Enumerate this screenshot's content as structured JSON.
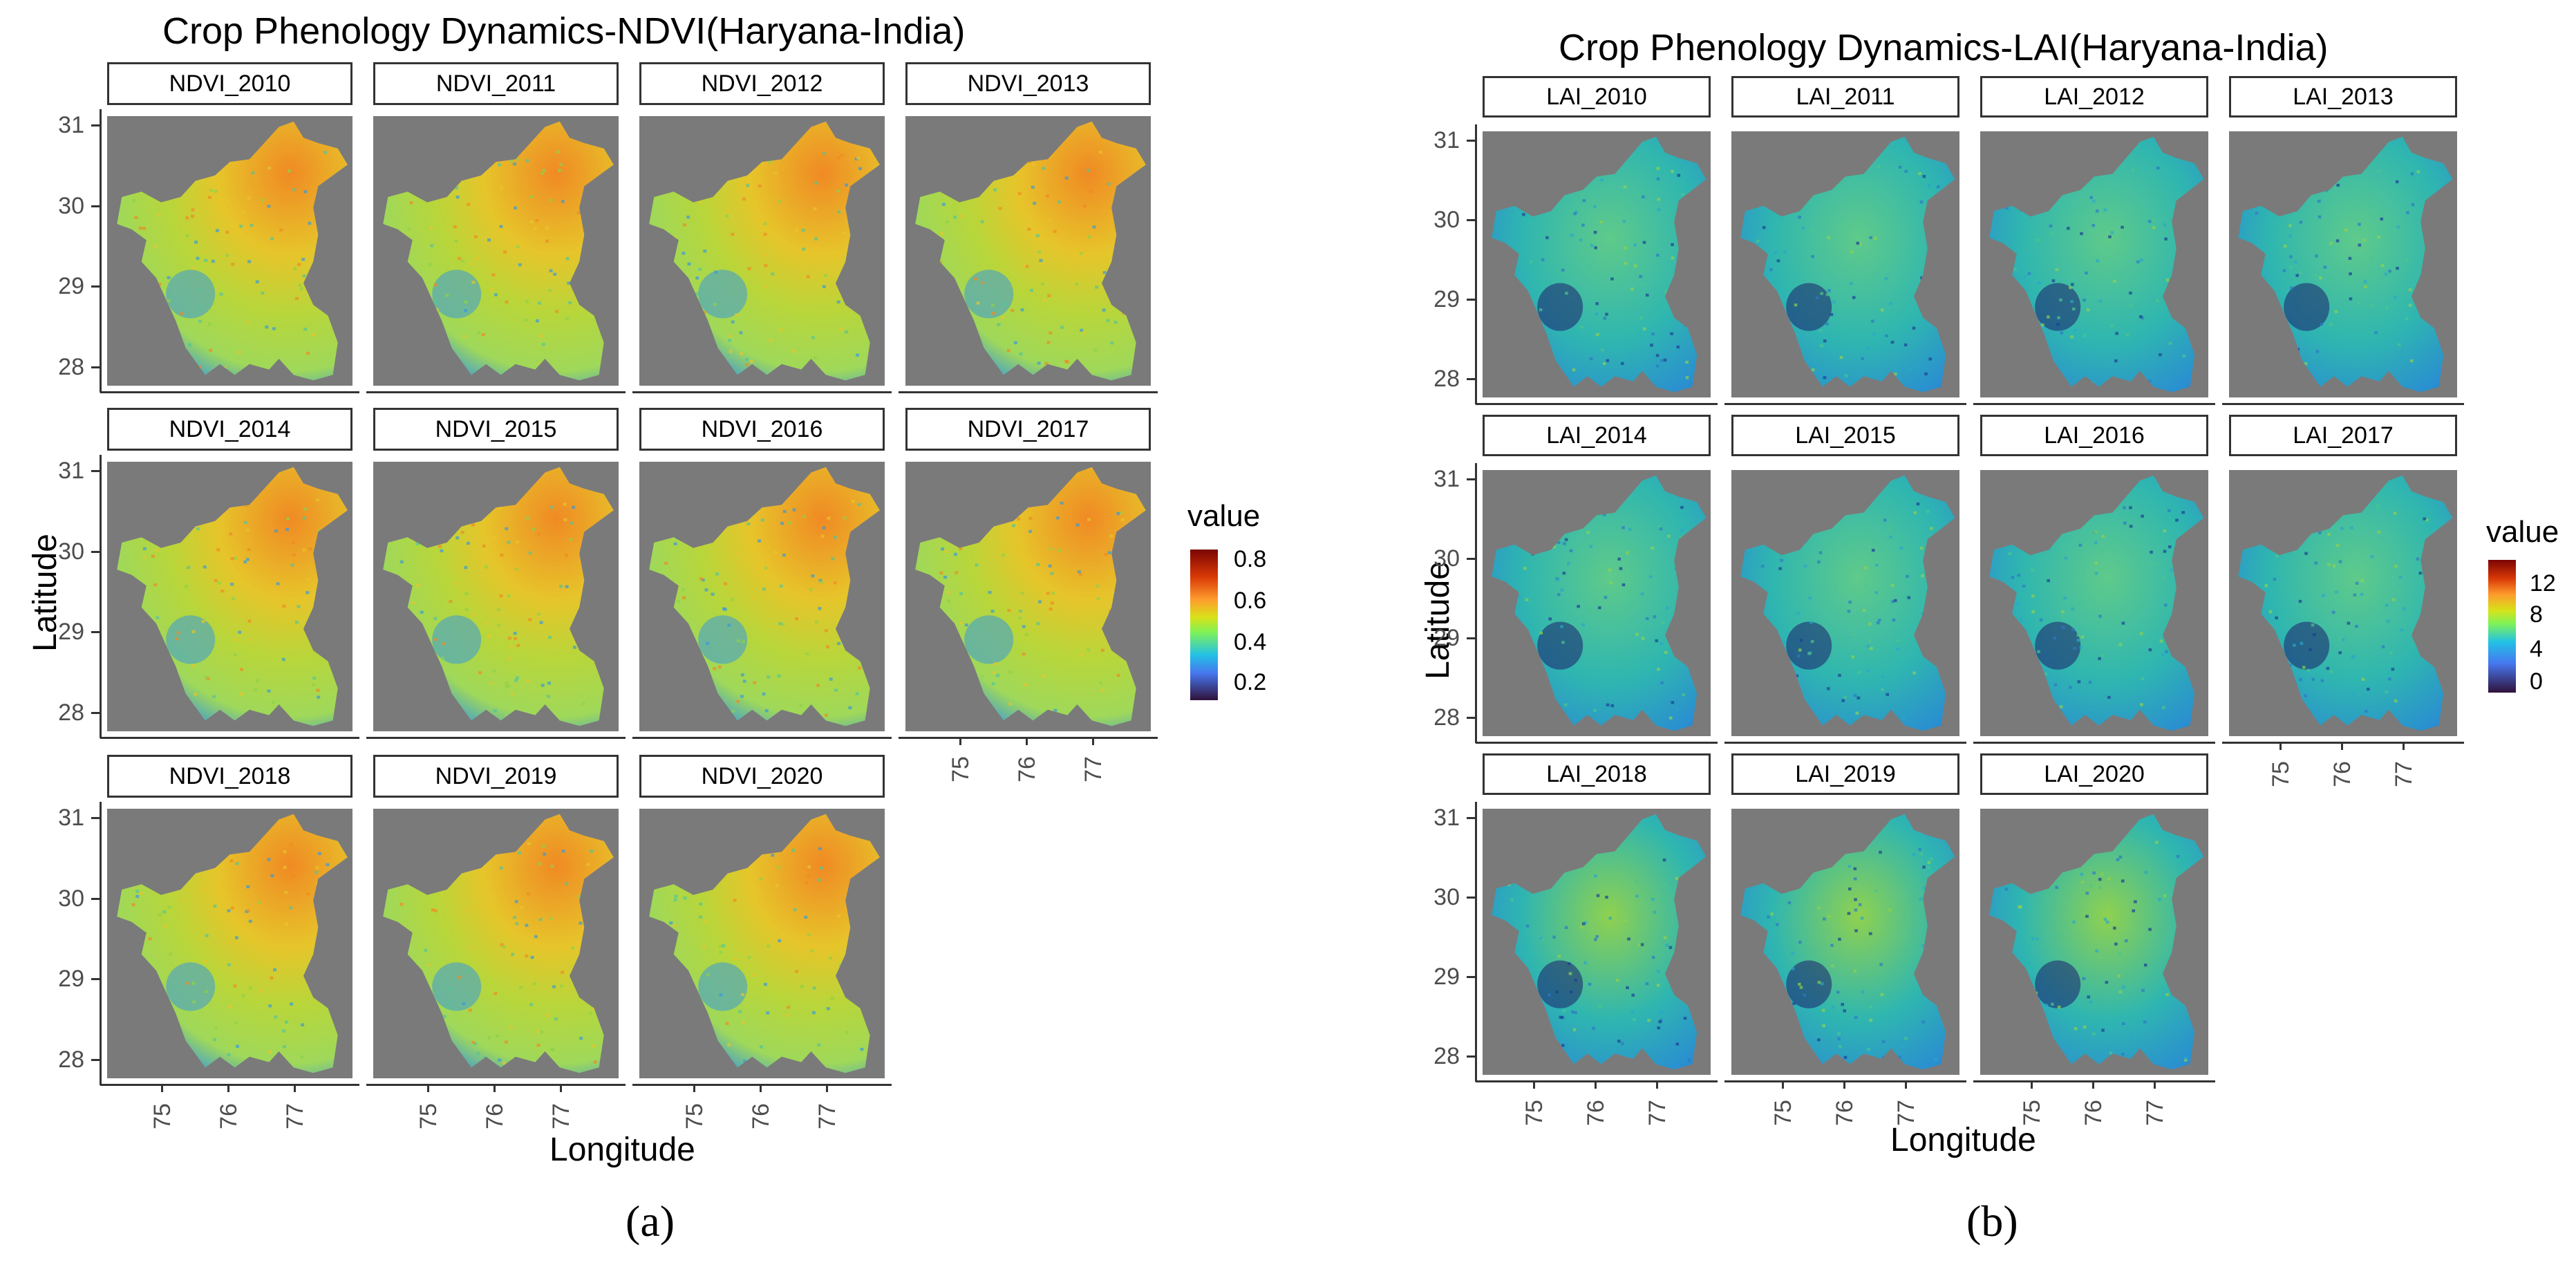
{
  "figure_a": {
    "title": "Crop Phenology Dynamics-NDVI(Haryana-India)",
    "panels": [
      "NDVI_2010",
      "NDVI_2011",
      "NDVI_2012",
      "NDVI_2013",
      "NDVI_2014",
      "NDVI_2015",
      "NDVI_2016",
      "NDVI_2017",
      "NDVI_2018",
      "NDVI_2019",
      "NDVI_2020"
    ],
    "xlabel": "Longitude",
    "ylabel": "Latitude",
    "yticks": [
      "31",
      "30",
      "29",
      "28"
    ],
    "xticks": [
      "75",
      "76",
      "77"
    ],
    "legend": {
      "title": "value",
      "labels": [
        "0.8",
        "0.6",
        "0.4",
        "0.2"
      ]
    },
    "caption": "(a)"
  },
  "figure_b": {
    "title": "Crop Phenology Dynamics-LAI(Haryana-India)",
    "panels": [
      "LAI_2010",
      "LAI_2011",
      "LAI_2012",
      "LAI_2013",
      "LAI_2014",
      "LAI_2015",
      "LAI_2016",
      "LAI_2017",
      "LAI_2018",
      "LAI_2019",
      "LAI_2020"
    ],
    "xlabel": "Longitude",
    "ylabel": "Latitude",
    "yticks": [
      "31",
      "30",
      "29",
      "28"
    ],
    "xticks": [
      "75",
      "76",
      "77"
    ],
    "legend": {
      "title": "value",
      "labels": [
        "12",
        "8",
        "4",
        "0"
      ]
    },
    "caption": "(b)"
  },
  "colors": {
    "background": "#7a7a7a",
    "ndvi_fill": "#b8d63a",
    "ndvi_high": "#f08a24",
    "ndvi_low": "#3a9ad9",
    "lai_fill": "#2fb6b0",
    "lai_high": "#8fd14f",
    "lai_low": "#1f4fa8",
    "lai_deep": "#1b1f6b"
  }
}
